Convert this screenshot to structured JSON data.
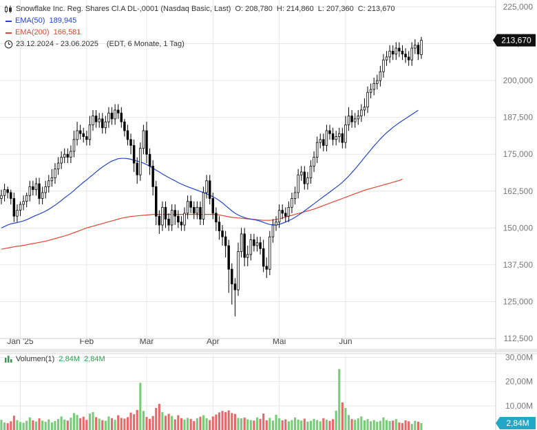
{
  "header": {
    "title": "Snowflake Inc. Reg. Shares Cl.A DL-,0001 (Nasdaq Basic, Last)",
    "ohlc": {
      "o_label": "O:",
      "o": "208,780",
      "h_label": "H:",
      "h": "214,860",
      "l_label": "L:",
      "l": "207,360",
      "c_label": "C:",
      "c": "213,670"
    },
    "ema50": {
      "label": "EMA(50)",
      "value": "189,945",
      "color": "#2244cc"
    },
    "ema200": {
      "label": "EMA(200)",
      "value": "166,581",
      "color": "#e04434"
    },
    "range": "23.12.2024 - 23.06.2025",
    "range_note": "(EDT, 6 Monate, 1 Tag)"
  },
  "volume_legend": {
    "label": "Volumen(1)",
    "value1": "2,84M",
    "value2": "2,84M"
  },
  "chart_data": [
    {
      "type": "candlestick",
      "y_ticks": [
        "225,000",
        "212,500",
        "200,000",
        "187,500",
        "175,000",
        "162,500",
        "150,000",
        "137,500",
        "125,000",
        "112,500"
      ],
      "y_tick_values": [
        225,
        212.5,
        200,
        187.5,
        175,
        162.5,
        150,
        137.5,
        125,
        112.5
      ],
      "ylim": [
        112.5,
        225
      ],
      "x_labels": [
        {
          "label": "Jan '25",
          "index": 6
        },
        {
          "label": "Feb",
          "index": 27
        },
        {
          "label": "Mär",
          "index": 46
        },
        {
          "label": "Apr",
          "index": 67
        },
        {
          "label": "Mai",
          "index": 88
        },
        {
          "label": "Jun",
          "index": 109
        }
      ],
      "last_price_label": "213,670",
      "closes": [
        161,
        163,
        162,
        160,
        154,
        156,
        158,
        159,
        161,
        164,
        163,
        165,
        160,
        162,
        164,
        166,
        167,
        170,
        172,
        174,
        175,
        174,
        176,
        180,
        183,
        182,
        181,
        180,
        185,
        188,
        186,
        187,
        184,
        186,
        189,
        187,
        190,
        189,
        186,
        183,
        180,
        178,
        172,
        168,
        177,
        183,
        175,
        171,
        164,
        154,
        151,
        157,
        153,
        151,
        156,
        154,
        152,
        151,
        155,
        159,
        157,
        155,
        157,
        153,
        162,
        166,
        160,
        155,
        152,
        149,
        147,
        144,
        136,
        131,
        129,
        142,
        148,
        140,
        141,
        146,
        144,
        145,
        143,
        137,
        136,
        147,
        151,
        152,
        156,
        155,
        154,
        157,
        160,
        162,
        168,
        169,
        165,
        167,
        171,
        174,
        179,
        180,
        178,
        183,
        182,
        180,
        181,
        182,
        179,
        185,
        188,
        186,
        187,
        188,
        190,
        191,
        196,
        197,
        199,
        200,
        203,
        207,
        208,
        210,
        209,
        211,
        210,
        209,
        208,
        207,
        211,
        212,
        209,
        213.67
      ],
      "opens": [
        160,
        161,
        163,
        162,
        160,
        154,
        156,
        158,
        159,
        161,
        164,
        163,
        165,
        160,
        162,
        164,
        166,
        167,
        170,
        172,
        174,
        175,
        174,
        176,
        180,
        183,
        182,
        181,
        180,
        185,
        188,
        186,
        187,
        184,
        186,
        189,
        187,
        190,
        189,
        186,
        183,
        180,
        178,
        172,
        168,
        177,
        183,
        175,
        171,
        164,
        154,
        151,
        157,
        153,
        151,
        156,
        154,
        152,
        151,
        155,
        159,
        157,
        155,
        157,
        153,
        162,
        166,
        160,
        155,
        152,
        149,
        147,
        144,
        136,
        131,
        129,
        142,
        148,
        140,
        141,
        146,
        144,
        145,
        143,
        137,
        136,
        147,
        151,
        152,
        156,
        155,
        154,
        157,
        160,
        162,
        168,
        169,
        165,
        167,
        171,
        174,
        179,
        180,
        178,
        183,
        182,
        180,
        181,
        182,
        179,
        185,
        188,
        186,
        187,
        188,
        190,
        191,
        196,
        197,
        199,
        200,
        203,
        207,
        208,
        210,
        209,
        211,
        210,
        209,
        208,
        207,
        211,
        212,
        208.78
      ],
      "highs": [
        163,
        165,
        164,
        163,
        162,
        158,
        159,
        161,
        162,
        166,
        166,
        167,
        167,
        164,
        166,
        168,
        170,
        172,
        174,
        176,
        177,
        177,
        178,
        183,
        186,
        185,
        184,
        183,
        188,
        190,
        190,
        189,
        189,
        188,
        191,
        191,
        192,
        192,
        191,
        187,
        185,
        182,
        180,
        174,
        179,
        185,
        186,
        177,
        173,
        166,
        156,
        159,
        159,
        155,
        158,
        158,
        156,
        154,
        157,
        161,
        161,
        159,
        159,
        159,
        164,
        168,
        168,
        162,
        157,
        154,
        151,
        149,
        146,
        138,
        133,
        145,
        150,
        150,
        144,
        148,
        148,
        147,
        147,
        146,
        140,
        149,
        153,
        154,
        158,
        158,
        157,
        159,
        162,
        164,
        170,
        171,
        171,
        169,
        173,
        176,
        181,
        182,
        182,
        185,
        185,
        184,
        183,
        184,
        184,
        188,
        191,
        190,
        189,
        190,
        192,
        194,
        198,
        199,
        201,
        202,
        205,
        209,
        210,
        212,
        212,
        213,
        213,
        212,
        211,
        210,
        213,
        214,
        213,
        214.86
      ],
      "lows": [
        158,
        159,
        160,
        158,
        152,
        152,
        154,
        156,
        157,
        159,
        161,
        161,
        158,
        158,
        160,
        162,
        164,
        165,
        168,
        170,
        172,
        172,
        172,
        174,
        178,
        180,
        179,
        178,
        178,
        183,
        184,
        184,
        182,
        182,
        184,
        185,
        185,
        187,
        184,
        181,
        178,
        175,
        169,
        165,
        166,
        175,
        172,
        168,
        161,
        151,
        148,
        149,
        150,
        149,
        149,
        151,
        150,
        149,
        149,
        153,
        155,
        153,
        153,
        151,
        151,
        160,
        158,
        153,
        149,
        146,
        144,
        140,
        128,
        124,
        120,
        127,
        140,
        137,
        137,
        139,
        142,
        142,
        141,
        135,
        133,
        134,
        145,
        149,
        150,
        153,
        152,
        152,
        155,
        158,
        160,
        166,
        163,
        163,
        165,
        169,
        172,
        177,
        176,
        176,
        180,
        178,
        178,
        179,
        177,
        177,
        183,
        184,
        184,
        185,
        186,
        188,
        189,
        194,
        195,
        197,
        198,
        201,
        205,
        206,
        207,
        207,
        208,
        207,
        206,
        205,
        205,
        209,
        207,
        207.36
      ],
      "ema50": [
        150,
        150.5,
        151,
        151.4,
        151.6,
        151.8,
        152.1,
        152.4,
        152.8,
        153.3,
        153.8,
        154.3,
        154.7,
        155.2,
        155.7,
        156.3,
        157,
        157.7,
        158.5,
        159.3,
        160.2,
        161,
        161.8,
        162.7,
        163.7,
        164.6,
        165.5,
        166.3,
        167.2,
        168.1,
        169,
        169.9,
        170.7,
        171.4,
        172.1,
        172.7,
        173.1,
        173.5,
        173.6,
        173.6,
        173.5,
        173.3,
        173,
        172.7,
        172.4,
        172,
        171.5,
        170.9,
        170.3,
        169.6,
        169,
        168.3,
        167.7,
        167.1,
        166.5,
        166,
        165.4,
        164.9,
        164.4,
        164,
        163.6,
        163.2,
        162.8,
        162.4,
        162,
        161.6,
        161.1,
        160.6,
        160,
        159.3,
        158.5,
        157.6,
        156.7,
        155.8,
        155,
        154.4,
        153.9,
        153.5,
        153.2,
        153,
        152.8,
        152.6,
        152.3,
        151.9,
        151.5,
        151.2,
        151,
        151,
        151.2,
        151.6,
        152,
        152.5,
        153,
        153.6,
        154.3,
        155,
        155.8,
        156.6,
        157.4,
        158.2,
        159,
        159.8,
        160.6,
        161.4,
        162.2,
        163,
        163.8,
        164.6,
        165.5,
        166.5,
        167.6,
        168.8,
        170,
        171.3,
        172.6,
        173.9,
        175.2,
        176.5,
        177.8,
        179,
        180.2,
        181.3,
        182.3,
        183.2,
        184.1,
        184.9,
        185.7,
        186.4,
        187.1,
        187.8,
        188.5,
        189.2,
        189.945
      ],
      "ema200": [
        142.8,
        143,
        143.2,
        143.4,
        143.6,
        143.8,
        143.9,
        144.1,
        144.3,
        144.5,
        144.7,
        144.9,
        145.1,
        145.3,
        145.5,
        145.8,
        146.1,
        146.4,
        146.7,
        147,
        147.3,
        147.6,
        148,
        148.4,
        148.8,
        149.2,
        149.6,
        150,
        150.3,
        150.6,
        150.9,
        151.2,
        151.5,
        151.8,
        152.1,
        152.4,
        152.7,
        153,
        153.3,
        153.5,
        153.7,
        153.9,
        154,
        154.1,
        154.2,
        154.3,
        154.4,
        154.5,
        154.6,
        154.6,
        154.6,
        154.6,
        154.6,
        154.6,
        154.6,
        154.6,
        154.6,
        154.6,
        154.6,
        154.6,
        154.6,
        154.6,
        154.6,
        154.6,
        154.6,
        154.6,
        154.6,
        154.6,
        154.6,
        154.4,
        154.2,
        154,
        153.8,
        153.6,
        153.5,
        153.4,
        153.3,
        153.2,
        153.1,
        153,
        152.9,
        152.8,
        152.7,
        152.6,
        152.6,
        152.6,
        152.7,
        152.9,
        153.1,
        153.4,
        153.7,
        154,
        154.3,
        154.6,
        154.9,
        155.2,
        155.5,
        155.8,
        156.1,
        156.4,
        156.8,
        157.2,
        157.6,
        158,
        158.4,
        158.8,
        159.2,
        159.6,
        160,
        160.4,
        160.8,
        161.2,
        161.6,
        162,
        162.4,
        162.8,
        163.1,
        163.4,
        163.7,
        164,
        164.3,
        164.6,
        164.9,
        165.2,
        165.5,
        165.8,
        166.1,
        166.581
      ]
    },
    {
      "type": "bar",
      "title": "Volumen(1)",
      "y_ticks": [
        "30,00M",
        "20,00M",
        "10,00M"
      ],
      "y_tick_values": [
        30,
        20,
        10
      ],
      "ylim": [
        0,
        31
      ],
      "last_volume_label": "2,84M",
      "values": [
        4.2,
        3.1,
        2.8,
        3.6,
        5.9,
        4.1,
        3.3,
        3.0,
        3.8,
        5.2,
        4.0,
        3.5,
        4.8,
        3.9,
        3.4,
        4.4,
        3.1,
        3.7,
        4.5,
        5.6,
        4.3,
        3.9,
        5.1,
        7.0,
        6.2,
        4.9,
        5.5,
        4.2,
        6.8,
        7.4,
        5.3,
        4.7,
        4.1,
        3.8,
        5.6,
        4.9,
        4.2,
        6.1,
        5.0,
        4.7,
        5.3,
        7.2,
        6.5,
        8.3,
        19.5,
        7.9,
        5.4,
        4.6,
        5.8,
        9.1,
        10.8,
        7.4,
        5.9,
        6.7,
        5.8,
        4.4,
        6.1,
        4.9,
        4.3,
        5.0,
        4.6,
        3.7,
        4.9,
        5.5,
        6.1,
        4.9,
        4.1,
        5.6,
        6.4,
        7.3,
        7.9,
        7.4,
        8.1,
        7.0,
        6.6,
        5.0,
        4.8,
        5.1,
        4.4,
        4.1,
        3.9,
        5.2,
        4.6,
        6.8,
        4.0,
        5.0,
        3.9,
        6.3,
        4.8,
        4.0,
        4.4,
        3.6,
        4.1,
        5.2,
        4.3,
        3.9,
        4.7,
        3.5,
        3.8,
        4.6,
        4.1,
        3.6,
        4.9,
        4.3,
        3.8,
        4.5,
        8.0,
        25.2,
        11.4,
        9.1,
        6.2,
        4.5,
        4.2,
        4.8,
        5.6,
        4.0,
        4.5,
        3.6,
        4.1,
        3.4,
        3.8,
        5.2,
        4.1,
        3.7,
        3.9,
        4.5,
        3.1,
        2.9,
        4.0,
        3.6,
        2.5,
        3.8,
        3.4,
        2.84
      ],
      "up_color": "#77cc77",
      "down_color": "#e86868"
    }
  ],
  "colors": {
    "candle": "#000000",
    "grid": "#e6e6e6",
    "tag_bg": "#111111",
    "vol_tag_bg": "#22a7c7"
  }
}
